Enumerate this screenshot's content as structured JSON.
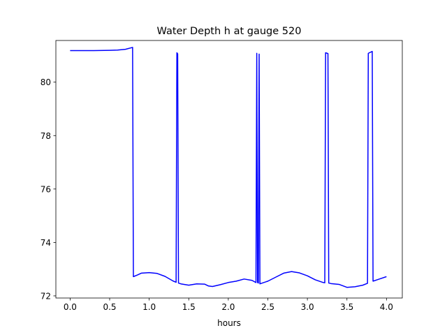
{
  "chart_data": {
    "type": "line",
    "title": "Water Depth h at gauge 520",
    "xlabel": "hours",
    "ylabel": "",
    "xlim": [
      -0.18,
      4.2
    ],
    "ylim": [
      71.92,
      81.56
    ],
    "xticks": [
      "0.0",
      "0.5",
      "1.0",
      "1.5",
      "2.0",
      "2.5",
      "3.0",
      "3.5",
      "4.0"
    ],
    "yticks": [
      "72",
      "74",
      "76",
      "78",
      "80"
    ],
    "grid": false,
    "series": [
      {
        "color": "#0000ff",
        "x": [
          0.0,
          0.3,
          0.5,
          0.6,
          0.7,
          0.79,
          0.8,
          0.85,
          0.9,
          1.0,
          1.1,
          1.2,
          1.3,
          1.34,
          1.35,
          1.36,
          1.37,
          1.4,
          1.5,
          1.6,
          1.7,
          1.75,
          1.8,
          1.9,
          2.0,
          2.1,
          2.2,
          2.3,
          2.35,
          2.36,
          2.37,
          2.38,
          2.39,
          2.4,
          2.5,
          2.6,
          2.7,
          2.8,
          2.9,
          3.0,
          3.1,
          3.2,
          3.22,
          3.23,
          3.26,
          3.27,
          3.3,
          3.4,
          3.5,
          3.6,
          3.7,
          3.76,
          3.77,
          3.82,
          3.83,
          3.9,
          4.0
        ],
        "y": [
          81.18,
          81.18,
          81.19,
          81.2,
          81.23,
          81.3,
          72.72,
          72.78,
          72.85,
          72.87,
          72.84,
          72.73,
          72.56,
          72.51,
          81.1,
          81.06,
          72.48,
          72.45,
          72.4,
          72.45,
          72.44,
          72.37,
          72.35,
          72.42,
          72.5,
          72.55,
          72.63,
          72.58,
          72.5,
          81.08,
          72.5,
          72.48,
          81.05,
          72.45,
          72.55,
          72.7,
          72.85,
          72.91,
          72.86,
          72.75,
          72.6,
          72.5,
          72.49,
          81.1,
          81.07,
          72.48,
          72.46,
          72.43,
          72.32,
          72.34,
          72.4,
          72.47,
          81.08,
          81.15,
          72.55,
          72.62,
          72.72
        ]
      }
    ]
  }
}
